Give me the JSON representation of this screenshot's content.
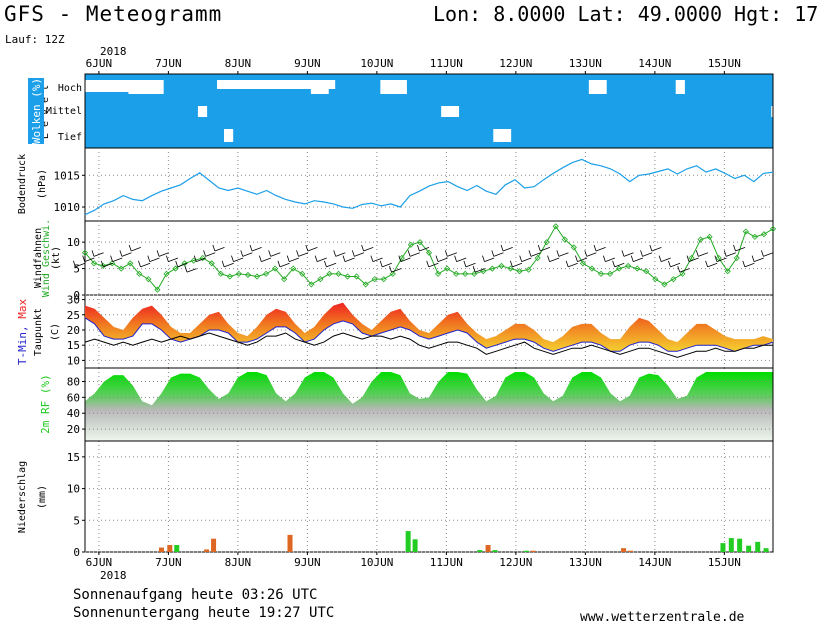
{
  "header": {
    "title": "GFS - Meteogramm",
    "location": "Lon: 8.0000 Lat: 49.0000 Hgt: 17",
    "run": "Lauf: 12Z",
    "year": "2018"
  },
  "footer": {
    "sunrise": "Sonnenaufgang heute 03:26 UTC",
    "sunset": "Sonnenuntergang heute 19:27 UTC",
    "site": "www.wetterzentrale.de"
  },
  "colors": {
    "cloud": "#1a9fe8",
    "pressure": "#1a9fe8",
    "wind": "#22aa22",
    "tmin": "#2222cc",
    "tmax": "#ee2222",
    "dewpoint": "#000000",
    "rh": "#22cc22",
    "precip_rain": "#dd6622",
    "precip_shower": "#22cc22"
  },
  "chart_data": [
    {
      "type": "heatmap",
      "panel": "clouds",
      "ylabel": "Wolken (%)",
      "sublabel": "L e v e l",
      "x_ticks": [
        "6JUN",
        "7JUN",
        "8JUN",
        "9JUN",
        "10JUN",
        "11JUN",
        "12JUN",
        "13JUN",
        "14JUN",
        "15JUN"
      ],
      "levels": [
        "Hoch",
        "Mittel",
        "Tief"
      ],
      "x_start": 0,
      "x_end": 9.9,
      "step": 0.125,
      "cover": {
        "Hoch": [
          1,
          1,
          1,
          1,
          1,
          0,
          0,
          0,
          0,
          1,
          1,
          1,
          1,
          1,
          1,
          1,
          1,
          1,
          1,
          1,
          1,
          1,
          1,
          1,
          1,
          1,
          0,
          0,
          1,
          1,
          1,
          1,
          1,
          1,
          0,
          0,
          0,
          1,
          1,
          1,
          1,
          1,
          1,
          1,
          1,
          1,
          1,
          1,
          1,
          1,
          1,
          1,
          1,
          1,
          1,
          1,
          1,
          1,
          0,
          0,
          1,
          1,
          1,
          1,
          1,
          1,
          1,
          1,
          0,
          1,
          1,
          1,
          1,
          1,
          1,
          1,
          1,
          1,
          1,
          1,
          0,
          0
        ],
        "Mittel": [
          1,
          1,
          1,
          1,
          1,
          1,
          1,
          1,
          1,
          1,
          1,
          1,
          1,
          0,
          1,
          1,
          1,
          1,
          1,
          1,
          1,
          1,
          1,
          1,
          1,
          1,
          1,
          1,
          1,
          1,
          1,
          1,
          1,
          1,
          1,
          1,
          1,
          1,
          1,
          1,
          1,
          0,
          0,
          1,
          1,
          1,
          1,
          1,
          1,
          1,
          1,
          1,
          1,
          1,
          1,
          1,
          1,
          1,
          1,
          1,
          1,
          1,
          1,
          1,
          1,
          1,
          1,
          1,
          1,
          1,
          1,
          1,
          1,
          1,
          1,
          1,
          1,
          1,
          1,
          0,
          0,
          1
        ],
        "Tief": [
          1,
          1,
          1,
          1,
          1,
          1,
          1,
          1,
          1,
          1,
          1,
          1,
          1,
          1,
          1,
          1,
          0,
          1,
          1,
          1,
          1,
          1,
          1,
          1,
          1,
          1,
          1,
          1,
          1,
          1,
          1,
          1,
          1,
          1,
          1,
          1,
          1,
          1,
          1,
          1,
          1,
          1,
          1,
          1,
          1,
          1,
          1,
          0,
          0,
          1,
          1,
          1,
          1,
          1,
          1,
          1,
          1,
          1,
          1,
          1,
          1,
          1,
          1,
          1,
          1,
          1,
          1,
          1,
          1,
          1,
          1,
          1,
          1,
          1,
          1,
          1,
          1,
          1,
          1,
          1,
          1,
          1
        ]
      }
    },
    {
      "type": "line",
      "panel": "pressure",
      "ylabel": "Bodendruck",
      "unit": "(hPa)",
      "ylim": [
        1007.8,
        1019.3
      ],
      "yticks": [
        1010,
        1015
      ],
      "x_start": 0,
      "x_end": 9.9,
      "values": [
        1008.8,
        1009.5,
        1010.5,
        1011.0,
        1011.8,
        1011.2,
        1011.0,
        1011.8,
        1012.5,
        1013.0,
        1013.5,
        1014.5,
        1015.4,
        1014.2,
        1013.0,
        1012.6,
        1013.0,
        1012.5,
        1012.0,
        1012.6,
        1011.8,
        1011.2,
        1010.8,
        1010.5,
        1011.0,
        1010.8,
        1010.5,
        1010.0,
        1009.8,
        1010.4,
        1010.6,
        1010.2,
        1010.5,
        1010.0,
        1011.8,
        1012.5,
        1013.3,
        1013.8,
        1014.0,
        1013.2,
        1012.6,
        1013.4,
        1012.5,
        1012.0,
        1013.5,
        1014.3,
        1013.0,
        1013.2,
        1014.3,
        1015.3,
        1016.2,
        1017.0,
        1017.5,
        1016.8,
        1016.5,
        1016.0,
        1015.2,
        1014.0,
        1015.0,
        1015.2,
        1015.6,
        1016.0,
        1015.2,
        1016.0,
        1016.5,
        1015.5,
        1016.0,
        1015.3,
        1014.5,
        1015.0,
        1014.0,
        1015.3,
        1015.5
      ]
    },
    {
      "type": "line",
      "panel": "wind",
      "ylabel": "Wind Geschwi.",
      "ylabel2": "Windfahnen",
      "unit": "(kt)",
      "ylim": [
        0,
        14
      ],
      "yticks": [
        0,
        5,
        10
      ],
      "x_start": 0,
      "x_end": 9.9,
      "values": [
        8,
        6,
        5.5,
        6,
        5,
        6,
        4,
        3,
        1,
        4,
        5,
        6,
        6.5,
        7,
        6,
        4,
        3.5,
        4,
        3.8,
        3.5,
        4,
        5,
        3,
        5,
        4,
        2,
        3,
        4,
        4,
        3.5,
        3.5,
        2,
        3,
        3,
        4,
        7,
        9.5,
        10,
        8,
        4,
        5,
        4,
        4,
        4,
        4.5,
        5,
        5.5,
        5,
        4.5,
        4.8,
        7,
        10,
        13,
        10.5,
        9,
        6,
        5,
        4,
        4,
        5,
        5.5,
        5,
        4.5,
        3,
        2,
        3,
        4,
        7,
        10.5,
        11,
        7,
        4.5,
        7,
        12,
        11,
        11.5,
        12.5
      ],
      "barbs": [
        6,
        7,
        8,
        6,
        7,
        8,
        9,
        6,
        7,
        8,
        7,
        6,
        5,
        7,
        8,
        9,
        6,
        7,
        8,
        9,
        7,
        8,
        6,
        7,
        8,
        9,
        7,
        6,
        8,
        7,
        8,
        9,
        7,
        6,
        5,
        7,
        8,
        9,
        6,
        7,
        8,
        7,
        6,
        5,
        7,
        8,
        9,
        6,
        7,
        8,
        9,
        7,
        8,
        6,
        7,
        8,
        9,
        7,
        6,
        8,
        7,
        8,
        9,
        7,
        6,
        5,
        7,
        8,
        6,
        7,
        8,
        9,
        6,
        7,
        8
      ]
    },
    {
      "type": "area",
      "panel": "temperature",
      "ylabel": "T-Min, Max",
      "ylabel2": "Taupunkt",
      "unit": "(C)",
      "ylim": [
        7.5,
        31.5
      ],
      "yticks": [
        10,
        15,
        20,
        25,
        30
      ],
      "x_start": 0,
      "x_end": 9.9,
      "tmax": [
        28,
        27,
        24,
        21,
        20,
        24,
        27,
        28,
        25,
        21,
        19,
        19,
        22,
        25,
        26,
        22,
        19,
        18,
        21,
        25,
        27,
        26,
        22,
        19,
        21,
        25,
        28,
        29,
        25,
        22,
        20,
        23,
        26,
        27,
        23,
        20,
        19,
        22,
        25,
        26,
        22,
        19,
        17,
        18,
        20,
        22,
        22,
        20,
        17,
        16,
        18,
        21,
        22,
        22,
        19,
        17,
        17,
        21,
        24,
        23,
        20,
        17,
        16,
        19,
        22,
        22,
        20,
        18,
        17,
        17,
        17,
        18,
        17
      ],
      "tmin": [
        24,
        22,
        18,
        17,
        17,
        18,
        22,
        22,
        20,
        17,
        16,
        17,
        18,
        20,
        20,
        19,
        16,
        16,
        17,
        19,
        21,
        21,
        19,
        16,
        17,
        20,
        22,
        23,
        22,
        19,
        18,
        19,
        20,
        21,
        20,
        18,
        17,
        18,
        19,
        20,
        19,
        16,
        14,
        15,
        16,
        17,
        17,
        16,
        14,
        13,
        14,
        15,
        16,
        16,
        15,
        13,
        13,
        15,
        16,
        16,
        15,
        13,
        13,
        14,
        15,
        15,
        15,
        14,
        13,
        14,
        15,
        15,
        16
      ],
      "dewpoint": [
        16,
        17,
        16,
        15,
        16,
        15,
        16,
        17,
        16,
        17,
        18,
        17,
        18,
        19,
        18,
        17,
        16,
        15,
        16,
        18,
        18,
        19,
        17,
        16,
        15,
        16,
        18,
        19,
        18,
        17,
        18,
        18,
        17,
        18,
        17,
        15,
        14,
        15,
        16,
        16,
        15,
        14,
        12,
        13,
        14,
        15,
        16,
        14,
        13,
        12,
        13,
        14,
        14,
        15,
        14,
        13,
        12,
        13,
        14,
        14,
        13,
        12,
        11,
        12,
        13,
        13,
        14,
        13,
        13,
        14,
        14,
        15,
        15
      ]
    },
    {
      "type": "area",
      "panel": "humidity",
      "ylabel": "2m RF (%)",
      "ylim": [
        5,
        97
      ],
      "yticks": [
        20,
        40,
        60,
        80
      ],
      "x_start": 0,
      "x_end": 9.9,
      "values": [
        55,
        65,
        80,
        88,
        88,
        75,
        55,
        50,
        65,
        85,
        90,
        90,
        85,
        70,
        58,
        65,
        85,
        92,
        92,
        88,
        65,
        55,
        65,
        85,
        92,
        92,
        85,
        65,
        52,
        60,
        80,
        92,
        92,
        88,
        65,
        58,
        60,
        80,
        92,
        92,
        90,
        70,
        55,
        62,
        85,
        92,
        92,
        85,
        65,
        55,
        62,
        85,
        92,
        92,
        85,
        65,
        55,
        62,
        85,
        90,
        88,
        75,
        58,
        62,
        85,
        92,
        92,
        92,
        92,
        92,
        92,
        92,
        92
      ]
    },
    {
      "type": "bar",
      "panel": "precipitation",
      "ylabel": "Niederschlag",
      "unit": "(mm)",
      "ylim": [
        0,
        17.5
      ],
      "yticks": [
        0,
        5,
        10,
        15
      ],
      "bars": [
        {
          "x": 1.1,
          "kind": "rain",
          "value": 0.7
        },
        {
          "x": 1.22,
          "kind": "rain",
          "value": 1.1
        },
        {
          "x": 1.32,
          "kind": "shower",
          "value": 1.1
        },
        {
          "x": 1.75,
          "kind": "rain",
          "value": 0.4
        },
        {
          "x": 1.85,
          "kind": "rain",
          "value": 2.1
        },
        {
          "x": 2.95,
          "kind": "rain",
          "value": 2.7
        },
        {
          "x": 4.65,
          "kind": "shower",
          "value": 3.3
        },
        {
          "x": 4.75,
          "kind": "shower",
          "value": 2.0
        },
        {
          "x": 5.68,
          "kind": "shower",
          "value": 0.3
        },
        {
          "x": 5.8,
          "kind": "rain",
          "value": 1.1
        },
        {
          "x": 5.9,
          "kind": "shower",
          "value": 0.3
        },
        {
          "x": 6.35,
          "kind": "shower",
          "value": 0.2
        },
        {
          "x": 6.45,
          "kind": "rain",
          "value": 0.2
        },
        {
          "x": 7.75,
          "kind": "rain",
          "value": 0.6
        },
        {
          "x": 7.85,
          "kind": "rain",
          "value": 0.2
        },
        {
          "x": 9.18,
          "kind": "shower",
          "value": 1.4
        },
        {
          "x": 9.3,
          "kind": "shower",
          "value": 2.2
        },
        {
          "x": 9.42,
          "kind": "shower",
          "value": 2.1
        },
        {
          "x": 9.55,
          "kind": "shower",
          "value": 1.0
        },
        {
          "x": 9.68,
          "kind": "shower",
          "value": 1.6
        },
        {
          "x": 9.8,
          "kind": "shower",
          "value": 0.6
        }
      ]
    }
  ]
}
